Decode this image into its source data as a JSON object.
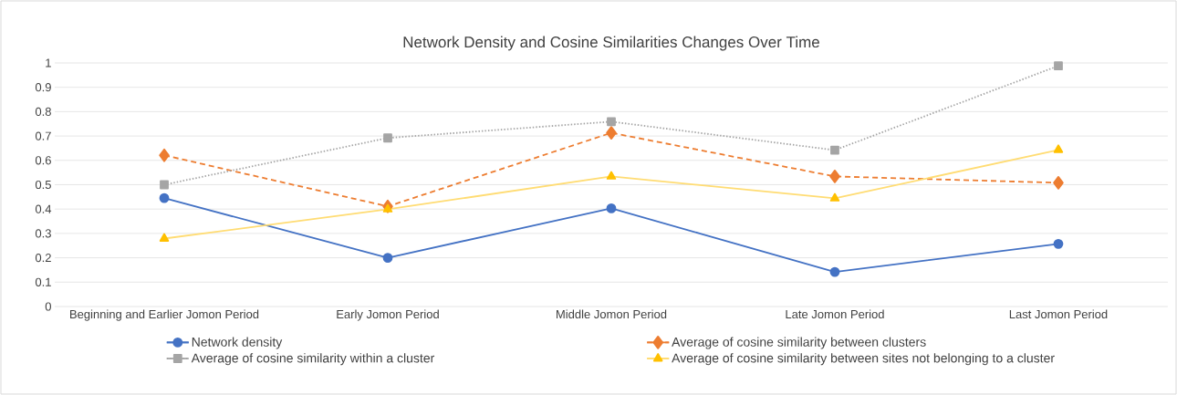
{
  "chart_data": {
    "type": "line",
    "title": "Network Density and Cosine Similarities Changes Over Time",
    "categories": [
      "Beginning and Earlier Jomon Period",
      "Early Jomon Period",
      "Middle Jomon Period",
      "Late Jomon Period",
      "Last Jomon Period"
    ],
    "series": [
      {
        "name": "Network density",
        "color": "#4472c4",
        "marker": "circle",
        "line_style": "solid",
        "values": [
          0.445,
          0.2,
          0.403,
          0.142,
          0.257
        ]
      },
      {
        "name": "Average of cosine similarity between clusters",
        "color": "#ed7d31",
        "marker": "diamond",
        "line_style": "dashed",
        "values": [
          0.621,
          0.411,
          0.713,
          0.534,
          0.508
        ]
      },
      {
        "name": "Average of cosine similarity within a cluster",
        "color": "#a5a5a5",
        "marker": "square",
        "line_style": "dotted",
        "values": [
          0.5,
          0.692,
          0.759,
          0.642,
          0.988
        ]
      },
      {
        "name": "Average of cosine similarity between sites not belonging to a cluster",
        "color": "#ffc000",
        "marker": "triangle",
        "line_style": "solid",
        "values": [
          0.279,
          0.399,
          0.534,
          0.444,
          0.643
        ]
      }
    ],
    "ylim": [
      0,
      1
    ],
    "yticks": [
      0,
      0.1,
      0.2,
      0.3,
      0.4,
      0.5,
      0.6,
      0.7,
      0.8,
      0.9,
      1
    ],
    "grid": "y",
    "legend": "bottom"
  }
}
